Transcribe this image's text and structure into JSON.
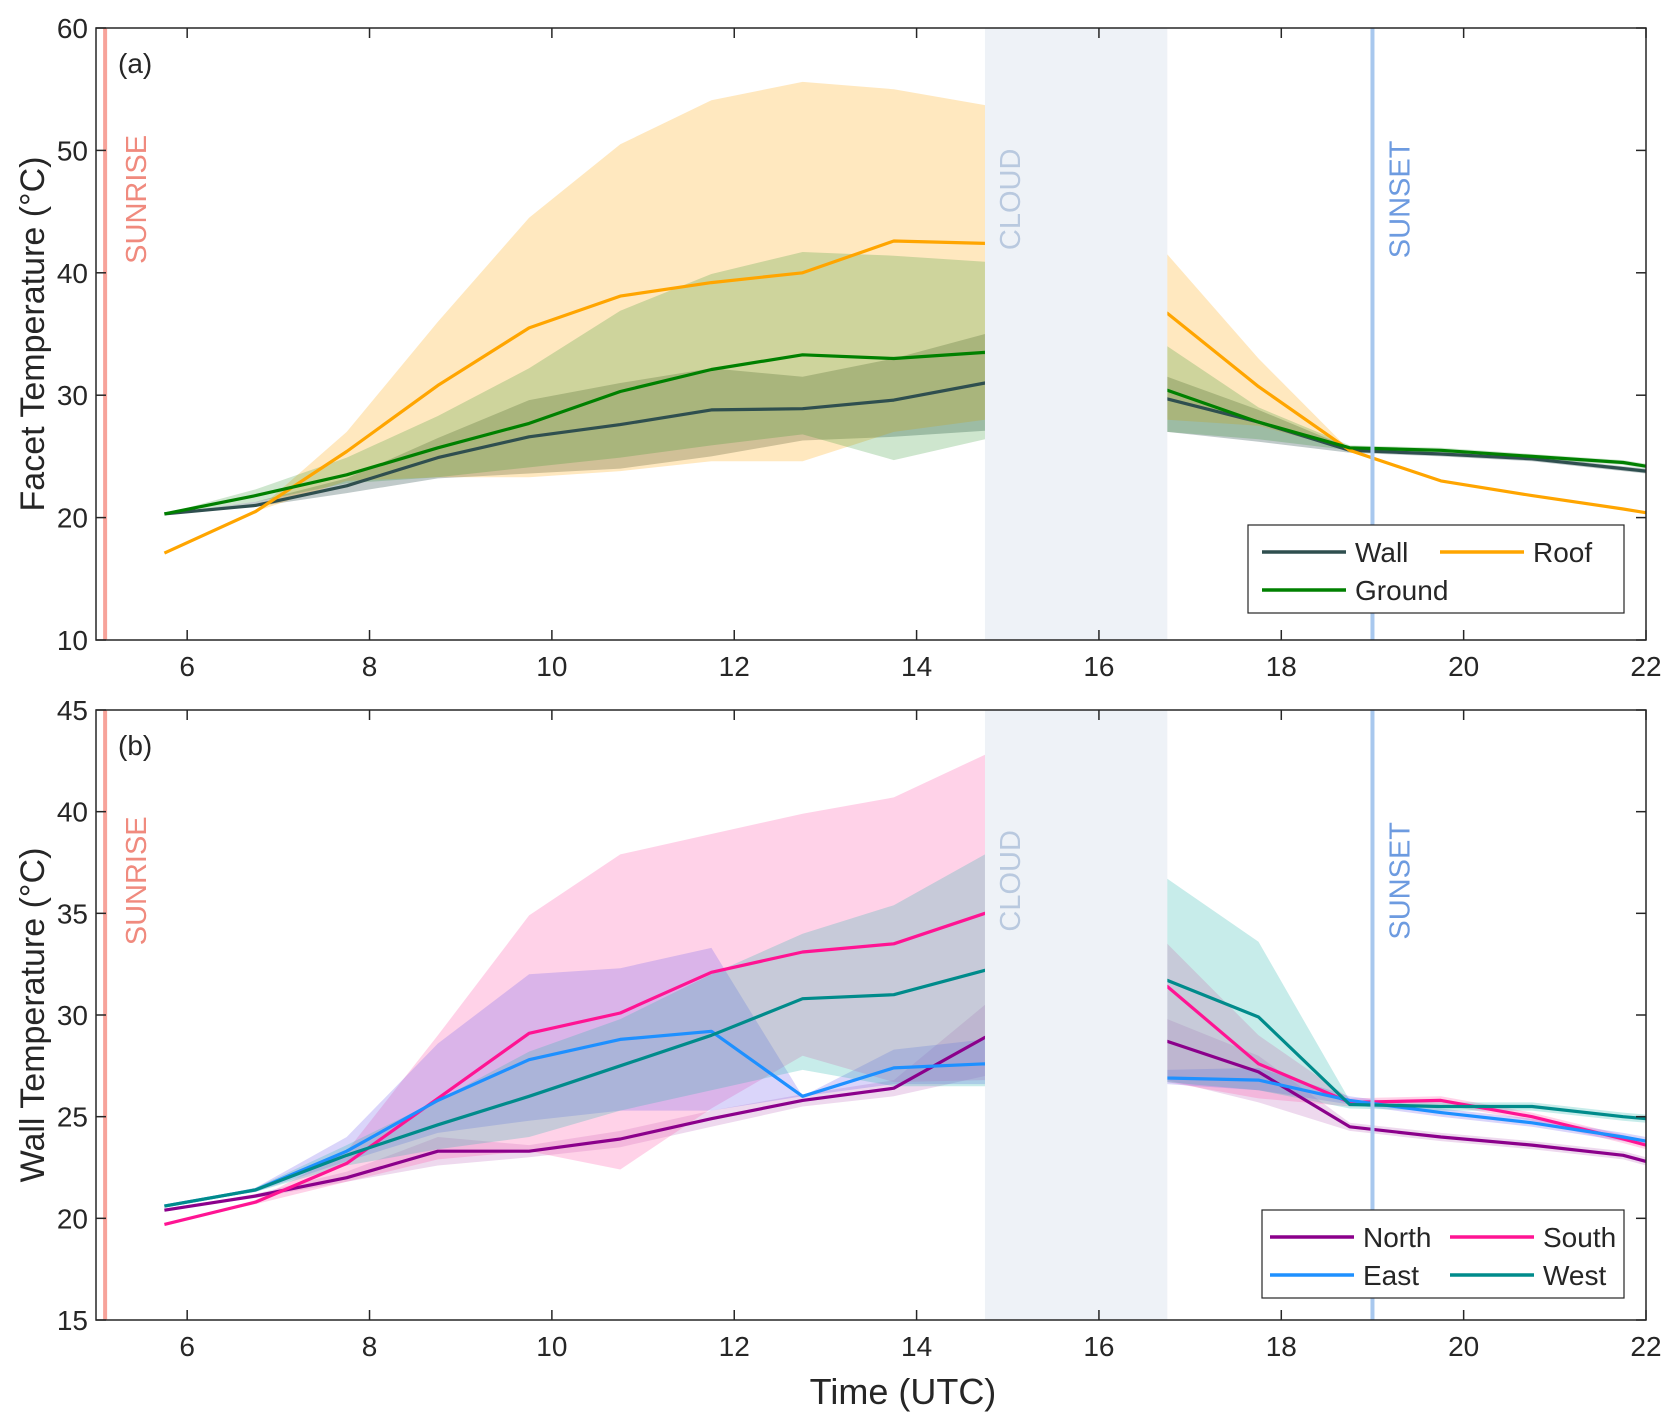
{
  "chart_data": [
    {
      "type": "line",
      "panel_label": "(a)",
      "xlabel": "",
      "ylabel": "Facet Temperature (°C)",
      "xlim": [
        5,
        22
      ],
      "ylim": [
        10,
        60
      ],
      "xticks": [
        6,
        8,
        10,
        12,
        14,
        16,
        18,
        20,
        22
      ],
      "yticks": [
        10,
        20,
        30,
        40,
        50,
        60
      ],
      "legend_position": "bottom-right",
      "legend_columns": 2,
      "events": {
        "sunrise": {
          "label": "SUNRISE",
          "x": 5.1,
          "color": "#f7a39a",
          "text_color": "#f08a7e"
        },
        "cloud": {
          "label": "CLOUD",
          "x_start": 14.75,
          "x_end": 16.75,
          "color": "#eef2f7",
          "text_color": "#b9c9df"
        },
        "sunset": {
          "label": "SUNSET",
          "x": 19.0,
          "color": "#a8c8ee",
          "text_color": "#6d9be0"
        }
      },
      "x": [
        5.75,
        6.75,
        7.75,
        8.75,
        9.75,
        10.75,
        11.75,
        12.75,
        13.75,
        14.75,
        16.75,
        17.75,
        18.75,
        19.75,
        20.75,
        21.75,
        22.0
      ],
      "series": [
        {
          "name": "Wall",
          "color": "#2f4f4f",
          "fill": "#2f4f4f",
          "fill_opacity": 0.3,
          "values": [
            20.3,
            21.0,
            22.6,
            24.9,
            26.6,
            27.6,
            28.8,
            28.9,
            29.6,
            31.0,
            29.7,
            27.8,
            25.5,
            25.2,
            24.8,
            24.0,
            23.8
          ],
          "lower": [
            20.3,
            20.9,
            22.0,
            23.2,
            23.6,
            24.0,
            25.0,
            26.3,
            26.6,
            27.1,
            27.0,
            26.2,
            25.3,
            25.0,
            24.6,
            23.8,
            23.6
          ],
          "upper": [
            20.3,
            21.3,
            23.2,
            26.5,
            29.6,
            31.0,
            32.2,
            31.5,
            33.0,
            35.0,
            31.5,
            28.8,
            25.7,
            25.4,
            25.0,
            24.2,
            24.0
          ]
        },
        {
          "name": "Roof",
          "color": "#ffa500",
          "fill": "#ffa500",
          "fill_opacity": 0.25,
          "values": [
            17.1,
            20.5,
            25.4,
            30.8,
            35.5,
            38.1,
            39.2,
            40.0,
            42.6,
            42.4,
            36.7,
            30.7,
            25.5,
            23.0,
            21.8,
            20.7,
            20.4
          ],
          "lower": [
            17.1,
            20.5,
            23.0,
            23.3,
            23.3,
            23.8,
            24.6,
            24.6,
            27.0,
            28.0,
            28.0,
            27.5,
            25.5,
            23.0,
            21.8,
            20.7,
            20.4
          ],
          "upper": [
            17.1,
            20.5,
            27.0,
            36.0,
            44.5,
            50.5,
            54.1,
            55.6,
            55.0,
            53.7,
            41.5,
            33.0,
            25.5,
            23.0,
            21.8,
            20.7,
            20.4
          ]
        },
        {
          "name": "Ground",
          "color": "#008000",
          "fill": "#228b22",
          "fill_opacity": 0.22,
          "values": [
            20.3,
            21.8,
            23.5,
            25.7,
            27.7,
            30.3,
            32.1,
            33.3,
            33.0,
            33.5,
            30.4,
            27.8,
            25.7,
            25.5,
            25.0,
            24.5,
            24.2
          ],
          "lower": [
            20.3,
            21.3,
            22.8,
            23.3,
            24.1,
            24.9,
            25.9,
            26.8,
            24.7,
            26.4,
            27.0,
            26.4,
            25.5,
            25.3,
            24.8,
            24.3,
            24.0
          ],
          "upper": [
            20.3,
            22.3,
            24.9,
            28.3,
            32.2,
            36.9,
            39.9,
            41.7,
            41.4,
            40.9,
            34.0,
            29.0,
            25.9,
            25.7,
            25.2,
            24.7,
            24.4
          ]
        }
      ]
    },
    {
      "type": "line",
      "panel_label": "(b)",
      "xlabel": "Time (UTC)",
      "ylabel": "Wall Temperature (°C)",
      "xlim": [
        5,
        22
      ],
      "ylim": [
        15,
        45
      ],
      "xticks": [
        6,
        8,
        10,
        12,
        14,
        16,
        18,
        20,
        22
      ],
      "yticks": [
        15,
        20,
        25,
        30,
        35,
        40,
        45
      ],
      "legend_position": "bottom-right",
      "legend_columns": 2,
      "events": {
        "sunrise": {
          "label": "SUNRISE",
          "x": 5.1,
          "color": "#f7a39a",
          "text_color": "#f08a7e"
        },
        "cloud": {
          "label": "CLOUD",
          "x_start": 14.75,
          "x_end": 16.75,
          "color": "#eef2f7",
          "text_color": "#b9c9df"
        },
        "sunset": {
          "label": "SUNSET",
          "x": 19.0,
          "color": "#a8c8ee",
          "text_color": "#6d9be0"
        }
      },
      "x": [
        5.75,
        6.75,
        7.75,
        8.75,
        9.75,
        10.75,
        11.75,
        12.75,
        13.75,
        14.75,
        16.75,
        17.75,
        18.75,
        19.75,
        20.75,
        21.75,
        22.0
      ],
      "series": [
        {
          "name": "North",
          "color": "#8b008b",
          "fill": "#8b008b",
          "fill_opacity": 0.15,
          "values": [
            20.4,
            21.1,
            22.0,
            23.3,
            23.3,
            23.9,
            24.9,
            25.8,
            26.4,
            28.9,
            28.7,
            27.2,
            24.5,
            24.0,
            23.6,
            23.1,
            22.8
          ],
          "lower": [
            20.4,
            21.0,
            21.8,
            22.6,
            23.0,
            23.5,
            24.5,
            25.5,
            26.0,
            27.0,
            26.8,
            25.7,
            24.3,
            23.8,
            23.4,
            22.9,
            22.6
          ],
          "upper": [
            20.4,
            21.2,
            22.3,
            24.0,
            23.6,
            24.3,
            25.3,
            26.1,
            26.8,
            30.5,
            29.8,
            28.0,
            24.7,
            24.2,
            23.8,
            23.3,
            23.0
          ]
        },
        {
          "name": "South",
          "color": "#ff1493",
          "fill": "#ff69b4",
          "fill_opacity": 0.3,
          "values": [
            19.7,
            20.8,
            22.7,
            25.9,
            29.1,
            30.1,
            32.1,
            33.1,
            33.5,
            35.0,
            31.4,
            27.6,
            25.7,
            25.8,
            25.0,
            23.9,
            23.6
          ],
          "lower": [
            19.7,
            20.7,
            21.8,
            22.9,
            23.3,
            22.4,
            25.4,
            28.0,
            26.7,
            26.8,
            26.7,
            25.9,
            25.5,
            25.6,
            24.8,
            23.7,
            23.4
          ],
          "upper": [
            19.7,
            20.9,
            23.3,
            29.0,
            34.9,
            37.9,
            38.9,
            39.9,
            40.7,
            42.8,
            33.5,
            29.0,
            25.9,
            26.0,
            25.2,
            24.1,
            23.8
          ]
        },
        {
          "name": "East",
          "color": "#1e90ff",
          "fill": "#7b68ee",
          "fill_opacity": 0.28,
          "values": [
            20.6,
            21.4,
            23.3,
            25.8,
            27.8,
            28.8,
            29.2,
            26.0,
            27.4,
            27.6,
            26.9,
            26.8,
            25.8,
            25.2,
            24.7,
            24.0,
            23.8
          ],
          "lower": [
            20.6,
            21.3,
            22.8,
            24.2,
            24.8,
            25.3,
            25.3,
            26.0,
            26.6,
            26.6,
            26.6,
            26.3,
            25.6,
            25.0,
            24.5,
            23.8,
            23.6
          ],
          "upper": [
            20.6,
            21.5,
            24.0,
            28.6,
            32.0,
            32.3,
            33.3,
            26.0,
            28.3,
            28.8,
            27.3,
            27.4,
            26.0,
            25.4,
            24.9,
            24.2,
            24.0
          ]
        },
        {
          "name": "West",
          "color": "#008b8b",
          "fill": "#20b2aa",
          "fill_opacity": 0.25,
          "values": [
            20.6,
            21.4,
            23.1,
            24.6,
            26.0,
            27.5,
            29.0,
            30.8,
            31.0,
            32.2,
            31.7,
            29.9,
            25.6,
            25.5,
            25.5,
            25.0,
            24.9
          ],
          "lower": [
            20.6,
            21.3,
            22.6,
            23.4,
            24.0,
            25.3,
            26.3,
            27.3,
            26.5,
            26.5,
            26.7,
            26.3,
            25.4,
            25.3,
            25.3,
            24.8,
            24.7
          ],
          "upper": [
            20.6,
            21.5,
            23.6,
            25.8,
            28.2,
            29.8,
            32.0,
            34.0,
            35.4,
            37.9,
            36.7,
            33.6,
            25.8,
            25.7,
            25.7,
            25.2,
            25.1
          ]
        }
      ]
    }
  ]
}
